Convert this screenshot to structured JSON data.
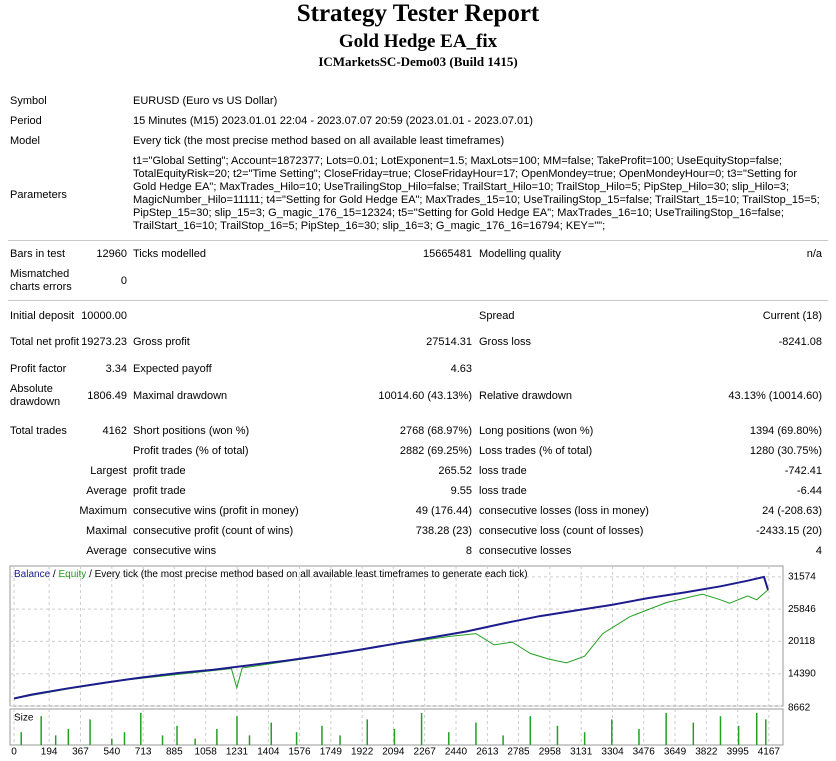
{
  "header": {
    "title": "Strategy Tester Report",
    "subtitle": "Gold Hedge EA_fix",
    "server": "ICMarketsSC-Demo03 (Build 1415)"
  },
  "info": [
    {
      "label": "Symbol",
      "value": "EURUSD (Euro vs US Dollar)"
    },
    {
      "label": "Period",
      "value": "15 Minutes (M15) 2023.01.01 22:04 - 2023.07.07 20:59 (2023.01.01 - 2023.07.01)"
    },
    {
      "label": "Model",
      "value": "Every tick (the most precise method based on all available least timeframes)"
    },
    {
      "label": "Parameters",
      "value": "t1=\"Global Setting\"; Account=1872377; Lots=0.01; LotExponent=1.5; MaxLots=100; MM=false; TakeProfit=100; UseEquityStop=false; TotalEquityRisk=20; t2=\"Time Setting\"; CloseFriday=true; CloseFridayHour=17; OpenMondey=true; OpenMondeyHour=0; t3=\"Setting for Gold Hedge EA\"; MaxTrades_Hilo=10; UseTrailingStop_Hilo=false; TrailStart_Hilo=10; TrailStop_Hilo=5; PipStep_Hilo=30; slip_Hilo=3; MagicNumber_Hilo=11111; t4=\"Setting for Gold Hedge EA\"; MaxTrades_15=10; UseTrailingStop_15=false; TrailStart_15=10; TrailStop_15=5; PipStep_15=30; slip_15=3; G_magic_176_15=12324; t5=\"Setting for Gold Hedge EA\"; MaxTrades_16=10; UseTrailingStop_16=false; TrailStart_16=10; TrailStop_16=5; PipStep_16=30; slip_16=3; G_magic_176_16=16794; KEY=\"\";"
    }
  ],
  "stats": [
    {
      "label": "Bars in test",
      "value": "12960",
      "label2": "Ticks modelled",
      "value2": "15665481",
      "label3": "Modelling quality",
      "value3": "n/a"
    },
    {
      "label": "Mismatched charts errors",
      "value": "0"
    },
    {
      "label": "Initial deposit",
      "value": "10000.00",
      "label3": "Spread",
      "value3": "Current (18)"
    },
    {
      "label": "Total net profit",
      "value": "19273.23",
      "label2": "Gross profit",
      "value2": "27514.31",
      "label3": "Gross loss",
      "value3": "-8241.08"
    },
    {
      "label": "Profit factor",
      "value": "3.34",
      "label2": "Expected payoff",
      "value2": "4.63"
    },
    {
      "label": "Absolute drawdown",
      "value": "1806.49",
      "label2": "Maximal drawdown",
      "value2": "10014.60 (43.13%)",
      "label3": "Relative drawdown",
      "value3": "43.13% (10014.60)"
    },
    {
      "label": "Total trades",
      "value": "4162",
      "label2": "Short positions (won %)",
      "value2": "2768 (68.97%)",
      "label3": "Long positions (won %)",
      "value3": "1394 (69.80%)"
    },
    {
      "label2": "Profit trades (% of total)",
      "value2": "2882 (69.25%)",
      "label3": "Loss trades (% of total)",
      "value3": "1280 (30.75%)"
    },
    {
      "label": "Largest",
      "label2": "profit trade",
      "value2": "265.52",
      "label3": "loss trade",
      "value3": "-742.41"
    },
    {
      "label": "Average",
      "label2": "profit trade",
      "value2": "9.55",
      "label3": "loss trade",
      "value3": "-6.44"
    },
    {
      "label": "Maximum",
      "label2": "consecutive wins (profit in money)",
      "value2": "49 (176.44)",
      "label3": "consecutive losses (loss in money)",
      "value3": "24 (-208.63)"
    },
    {
      "label": "Maximal",
      "label2": "consecutive profit (count of wins)",
      "value2": "738.28 (23)",
      "label3": "consecutive loss (count of losses)",
      "value3": "-2433.15 (20)"
    },
    {
      "label": "Average",
      "label2": "consecutive wins",
      "value2": "8",
      "label3": "consecutive losses",
      "value3": "4"
    }
  ],
  "chart": {
    "type": "line",
    "legend": [
      "Balance",
      "Equity",
      "Every tick (the most precise method based on all available least timeframes to generate each tick)"
    ],
    "separator": "/",
    "xlim": [
      -22,
      4245
    ],
    "ylim": [
      8662,
      33500
    ],
    "yticks": [
      8662,
      14390,
      20118,
      25846,
      31574
    ],
    "xticks": [
      0,
      194,
      367,
      540,
      713,
      885,
      1058,
      1231,
      1404,
      1576,
      1749,
      1922,
      2094,
      2267,
      2440,
      2613,
      2785,
      2958,
      3131,
      3304,
      3476,
      3649,
      3822,
      3995,
      4167
    ],
    "grid": true,
    "series": [
      {
        "name": "Balance",
        "color": "#1c1c8f",
        "x": [
          0,
          100,
          300,
          500,
          700,
          900,
          1100,
          1300,
          1500,
          1700,
          1900,
          2100,
          2300,
          2500,
          2700,
          2900,
          3100,
          3300,
          3500,
          3700,
          3900,
          4050,
          4140,
          4162
        ],
        "values": [
          10000,
          10700,
          11800,
          12800,
          13700,
          14500,
          15100,
          15900,
          16700,
          17600,
          18600,
          19700,
          20800,
          21900,
          23300,
          24600,
          25600,
          26600,
          27800,
          28800,
          29900,
          30900,
          31574,
          29273
        ]
      },
      {
        "name": "Equity",
        "color": "#22a022",
        "x": [
          0,
          300,
          600,
          1200,
          1230,
          1260,
          1800,
          2100,
          2400,
          2550,
          2650,
          2750,
          2850,
          2950,
          3050,
          3150,
          3250,
          3400,
          3600,
          3800,
          3900,
          3950,
          4050,
          4100,
          4162
        ],
        "values": [
          10000,
          11700,
          13200,
          15300,
          11900,
          15400,
          18000,
          19600,
          21000,
          21500,
          19500,
          20000,
          18000,
          17000,
          16300,
          17500,
          21500,
          24500,
          27000,
          28500,
          27500,
          26900,
          28200,
          27500,
          29273
        ]
      }
    ],
    "size": {
      "label": "Size",
      "color": "#22a022",
      "ylim": [
        0,
        10
      ],
      "x": [
        40,
        150,
        230,
        300,
        420,
        540,
        610,
        700,
        820,
        900,
        1000,
        1120,
        1231,
        1300,
        1420,
        1560,
        1700,
        1800,
        1950,
        2100,
        2250,
        2400,
        2550,
        2700,
        2850,
        3000,
        3150,
        3300,
        3450,
        3600,
        3750,
        3900,
        4000,
        4100,
        4150
      ],
      "values": [
        4,
        9,
        3,
        5,
        8,
        2,
        4,
        10,
        3,
        6,
        2,
        5,
        9,
        3,
        7,
        4,
        6,
        3,
        8,
        5,
        10,
        4,
        7,
        3,
        9,
        6,
        4,
        8,
        5,
        10,
        7,
        9,
        6,
        10,
        8
      ]
    }
  }
}
